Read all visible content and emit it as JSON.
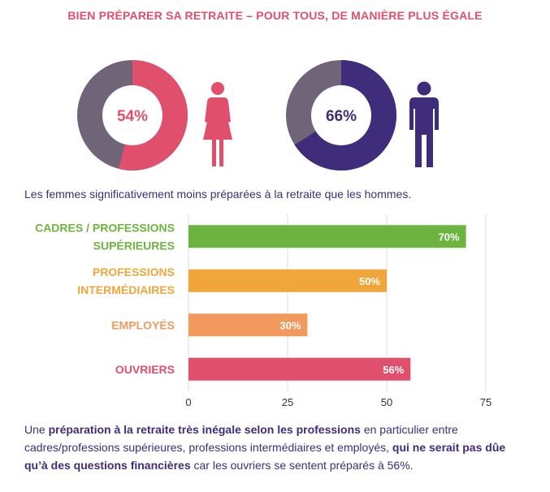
{
  "title": "BIEN PRÉPARER SA RETRAITE – POUR TOUS, DE MANIÈRE PLUS ÉGALE",
  "donuts": [
    {
      "label": "54%",
      "value": 54,
      "color": "#e0506d",
      "rest_color": "#706479",
      "label_color": "#e0506d",
      "icon": "woman-icon",
      "icon_color": "#e0506d"
    },
    {
      "label": "66%",
      "value": 66,
      "color": "#3f2c7a",
      "rest_color": "#706479",
      "label_color": "#3f2c7a",
      "icon": "man-icon",
      "icon_color": "#3f2c7a"
    }
  ],
  "caption_top": "Les femmes significativement moins préparées à la retraite que les hommes.",
  "chart_data": {
    "type": "bar",
    "orientation": "horizontal",
    "categories": [
      [
        "CADRES / PROFESSIONS",
        "SUPÉRIEURES"
      ],
      [
        "PROFESSIONS",
        "INTERMÉDIAIRES"
      ],
      [
        "EMPLOYÉS"
      ],
      [
        "OUVRIERS"
      ]
    ],
    "values": [
      70,
      50,
      30,
      56
    ],
    "data_labels": [
      "70%",
      "50%",
      "30%",
      "56%"
    ],
    "colors": [
      "#6db33f",
      "#f0a63a",
      "#f29a5e",
      "#e0506d"
    ],
    "xticks": [
      0,
      25,
      50,
      75
    ],
    "xlim": [
      0,
      75
    ],
    "grid": true
  },
  "bottom_text": [
    {
      "text": "Une ",
      "bold": false
    },
    {
      "text": "préparation à la retraite très inégale selon les professions",
      "bold": true
    },
    {
      "text": " en particulier entre cadres/professions supérieures, professions intermédiaires et employés, ",
      "bold": false
    },
    {
      "text": "qui ne serait pas dûe qu’à des questions financières",
      "bold": true
    },
    {
      "text": " car les ouvriers se sentent préparés à 56%.",
      "bold": false
    }
  ]
}
